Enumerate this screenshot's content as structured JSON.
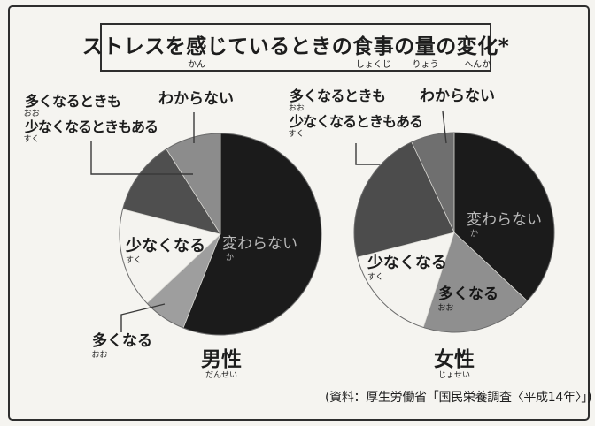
{
  "page": {
    "background_color": "#f5f4f0",
    "border_color": "#2e2e2e"
  },
  "title": {
    "text": "ストレスを感じているときの食事の量の変化 *",
    "segments": [
      {
        "t": "ストレスを",
        "f": ""
      },
      {
        "t": "感",
        "f": "かん"
      },
      {
        "t": "じているときの",
        "f": ""
      },
      {
        "t": "食事",
        "f": "しょくじ"
      },
      {
        "t": "の",
        "f": ""
      },
      {
        "t": "量",
        "f": "りょう"
      },
      {
        "t": "の",
        "f": ""
      },
      {
        "t": "変化",
        "f": "へんか"
      },
      {
        "t": " *",
        "f": ""
      }
    ]
  },
  "labels": {
    "both_line1": [
      {
        "t": "多",
        "f": "おお"
      },
      {
        "t": "くなるときも",
        "f": ""
      }
    ],
    "both_line2": [
      {
        "t": "少",
        "f": "すく"
      },
      {
        "t": "なくなるときもある",
        "f": ""
      }
    ],
    "wakaranai": [
      {
        "t": "わからない",
        "f": ""
      }
    ],
    "kawaranai": [
      {
        "t": "変",
        "f": "か"
      },
      {
        "t": "わらない",
        "f": ""
      }
    ],
    "sukunakunaru": [
      {
        "t": "少",
        "f": "すく"
      },
      {
        "t": "なくなる",
        "f": ""
      }
    ],
    "ookunaru": [
      {
        "t": "多",
        "f": "おお"
      },
      {
        "t": "くなる",
        "f": ""
      }
    ],
    "men": [
      {
        "t": "男性",
        "f": "だんせい"
      }
    ],
    "women": [
      {
        "t": "女性",
        "f": "じょせい"
      }
    ]
  },
  "source": {
    "text": "(資料：厚生労働省「国民栄養調査〈平成14年〉」)"
  },
  "chart_data": [
    {
      "type": "pie",
      "title": "男性",
      "title_furigana": "だんせい",
      "unit": "%",
      "values_estimated_from_angles": true,
      "start_at": "12-o'clock, clockwise",
      "segments": [
        {
          "label": "変わらない",
          "furigana": "か",
          "value": 56,
          "color": "#1b1b1b"
        },
        {
          "label": "多くなる",
          "furigana": "おお",
          "value": 7,
          "color": "#9e9e9e"
        },
        {
          "label": "少なくなる",
          "furigana": "すく",
          "value": 16,
          "color": "#f4f3ef"
        },
        {
          "label": "多くなるときも少なくなるときもある",
          "furigana": "おお・すく",
          "value": 12,
          "color": "#4f4f4f"
        },
        {
          "label": "わからない",
          "furigana": "",
          "value": 9,
          "color": "#8c8c8c"
        }
      ]
    },
    {
      "type": "pie",
      "title": "女性",
      "title_furigana": "じょせい",
      "unit": "%",
      "values_estimated_from_angles": true,
      "start_at": "12-o'clock, clockwise",
      "segments": [
        {
          "label": "変わらない",
          "furigana": "か",
          "value": 37,
          "color": "#1b1b1b"
        },
        {
          "label": "多くなる",
          "furigana": "おお",
          "value": 18,
          "color": "#8f8f8f"
        },
        {
          "label": "少なくなる",
          "furigana": "すく",
          "value": 16,
          "color": "#f4f3ef"
        },
        {
          "label": "多くなるときも少なくなるときもある",
          "furigana": "おお・すく",
          "value": 22,
          "color": "#4c4c4c"
        },
        {
          "label": "わからない",
          "furigana": "",
          "value": 7,
          "color": "#6f6f6f"
        }
      ]
    }
  ]
}
